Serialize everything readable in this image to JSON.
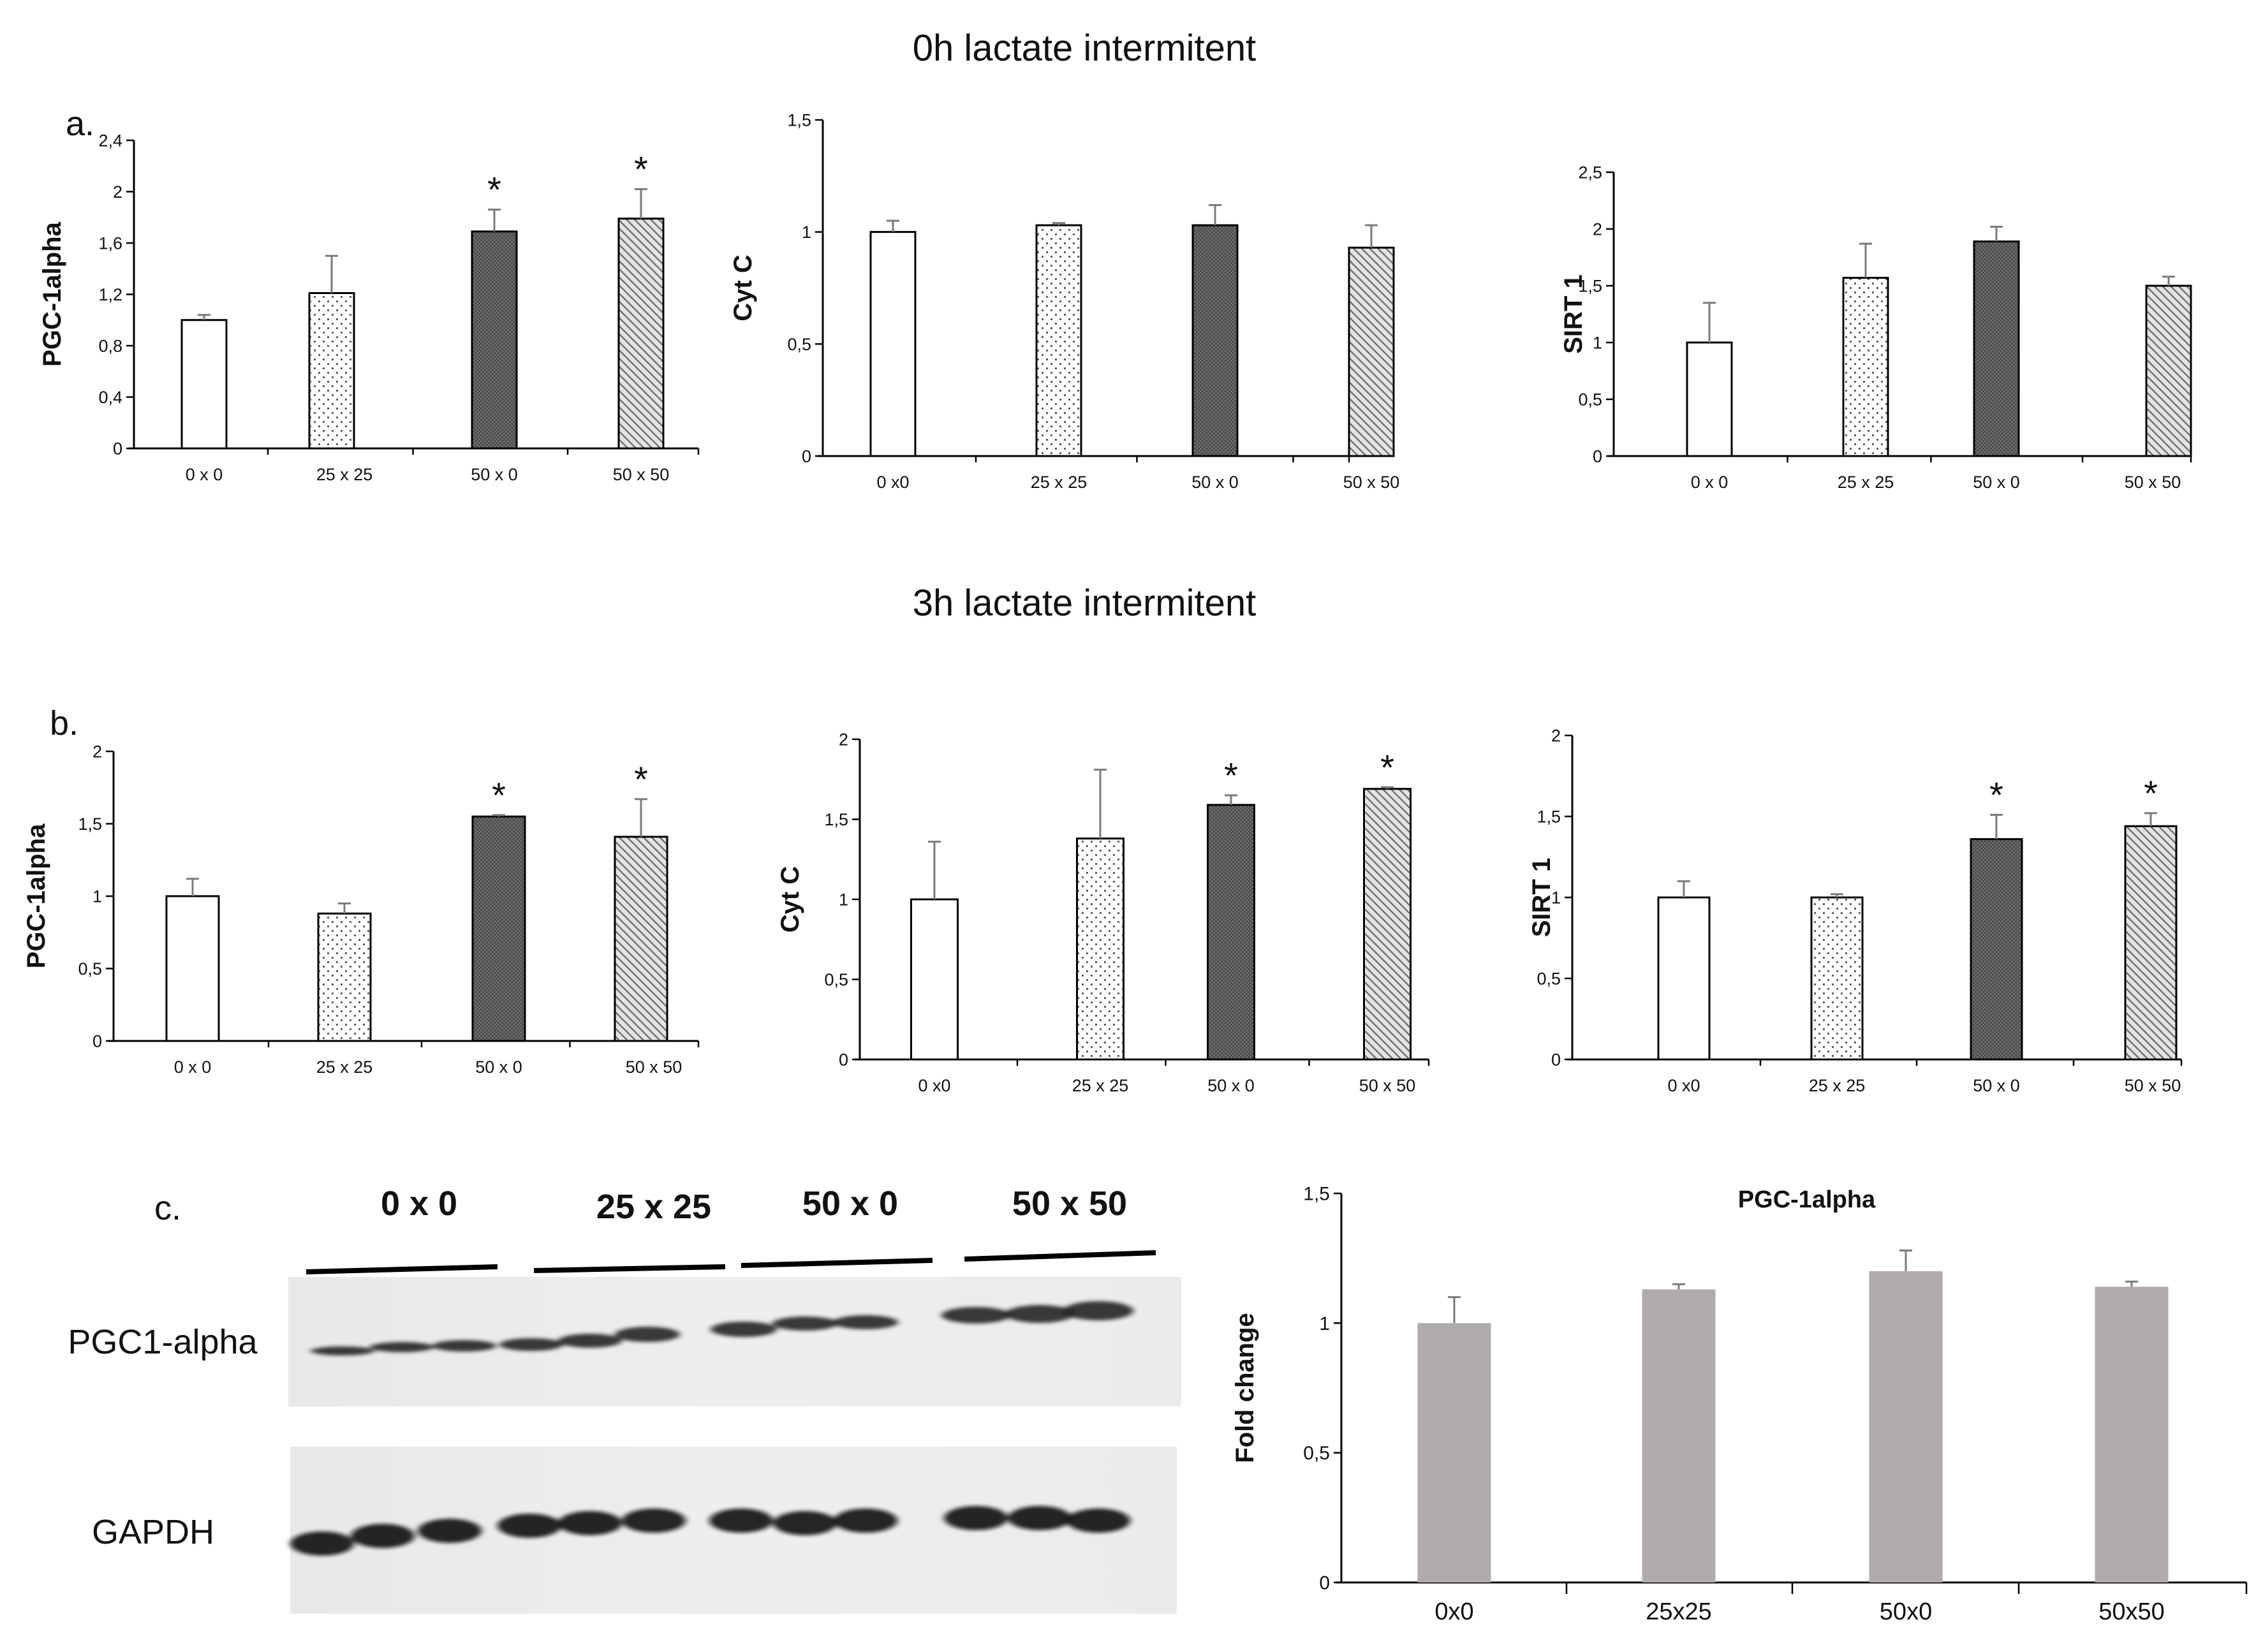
{
  "figure": {
    "row_a_title": "0h lactate intermitent",
    "row_b_title": "3h lactate intermitent",
    "panel_a": "a.",
    "panel_b": "b.",
    "panel_c": "c.",
    "blot": {
      "group_labels": [
        "0 x 0",
        "25 x 25",
        "50 x 0",
        "50 x 50"
      ],
      "row_labels": [
        "PGC1-alpha",
        "GAPDH"
      ]
    }
  },
  "colors": {
    "gray_bar": "#b0acac",
    "dark_bar": "#6e6e6e",
    "axis": "#000000"
  },
  "chart_data": [
    {
      "id": "a1",
      "type": "bar",
      "ylabel": "PGC-1alpha",
      "categories": [
        "0 x 0",
        "25 x 25",
        "50 x 0",
        "50 x 50"
      ],
      "values": [
        1.0,
        1.21,
        1.69,
        1.79
      ],
      "errors": [
        0.04,
        0.29,
        0.17,
        0.23
      ],
      "sig": [
        "",
        "",
        "*",
        "*"
      ],
      "ylim": [
        0,
        2.4
      ],
      "yticks": [
        "0",
        "0,4",
        "0,8",
        "1,2",
        "1,6",
        "2",
        "2,4"
      ],
      "ystep": 0.4
    },
    {
      "id": "a2",
      "type": "bar",
      "ylabel": "Cyt C",
      "categories": [
        "0 x0",
        "25 x 25",
        "50 x 0",
        "50 x 50"
      ],
      "values": [
        1.0,
        1.03,
        1.03,
        0.93
      ],
      "errors": [
        0.05,
        0.01,
        0.09,
        0.1
      ],
      "sig": [
        "",
        "",
        "",
        ""
      ],
      "ylim": [
        0,
        1.5
      ],
      "yticks": [
        "0",
        "0,5",
        "1",
        "1,5"
      ],
      "ystep": 0.5
    },
    {
      "id": "a3",
      "type": "bar",
      "ylabel": "SIRT 1",
      "categories": [
        "0 x 0",
        "25 x 25",
        "50 x 0",
        "50 x 50"
      ],
      "values": [
        1.0,
        1.57,
        1.89,
        1.5
      ],
      "errors": [
        0.35,
        0.3,
        0.13,
        0.08
      ],
      "sig": [
        "",
        "",
        "",
        ""
      ],
      "ylim": [
        0,
        2.5
      ],
      "yticks": [
        "0",
        "0,5",
        "1",
        "1,5",
        "2",
        "2,5"
      ],
      "ystep": 0.5
    },
    {
      "id": "b1",
      "type": "bar",
      "ylabel": "PGC-1alpha",
      "categories": [
        "0 x 0",
        "25 x 25",
        "50 x 0",
        "50 x 50"
      ],
      "values": [
        1.0,
        0.88,
        1.55,
        1.41
      ],
      "errors": [
        0.12,
        0.07,
        0.01,
        0.26
      ],
      "sig": [
        "",
        "",
        "*",
        "*"
      ],
      "ylim": [
        0,
        2
      ],
      "yticks": [
        "0",
        "0,5",
        "1",
        "1,5",
        "2"
      ],
      "ystep": 0.5
    },
    {
      "id": "b2",
      "type": "bar",
      "ylabel": "Cyt C",
      "categories": [
        "0 x0",
        "25 x 25",
        "50 x 0",
        "50 x 50"
      ],
      "values": [
        1.0,
        1.38,
        1.59,
        1.69
      ],
      "errors": [
        0.36,
        0.43,
        0.06,
        0.01
      ],
      "sig": [
        "",
        "",
        "*",
        "*"
      ],
      "ylim": [
        0,
        2
      ],
      "yticks": [
        "0",
        "0,5",
        "1",
        "1,5",
        "2"
      ],
      "ystep": 0.5
    },
    {
      "id": "b3",
      "type": "bar",
      "ylabel": "SIRT 1",
      "categories": [
        "0 x0",
        "25 x 25",
        "50 x 0",
        "50 x 50"
      ],
      "values": [
        1.0,
        1.0,
        1.36,
        1.44
      ],
      "errors": [
        0.1,
        0.02,
        0.15,
        0.08
      ],
      "sig": [
        "",
        "",
        "*",
        "*"
      ],
      "ylim": [
        0,
        2
      ],
      "yticks": [
        "0",
        "0,5",
        "1",
        "1,5",
        "2"
      ],
      "ystep": 0.5
    },
    {
      "id": "c",
      "type": "bar",
      "title": "PGC-1alpha",
      "ylabel": "Fold change",
      "categories": [
        "0x0",
        "25x25",
        "50x0",
        "50x50"
      ],
      "values": [
        1.0,
        1.13,
        1.2,
        1.14
      ],
      "errors": [
        0.1,
        0.02,
        0.08,
        0.02
      ],
      "sig": [
        "",
        "",
        "",
        ""
      ],
      "ylim": [
        0,
        1.5
      ],
      "yticks": [
        "0",
        "0,5",
        "1",
        "1,5"
      ],
      "ystep": 0.5
    }
  ]
}
